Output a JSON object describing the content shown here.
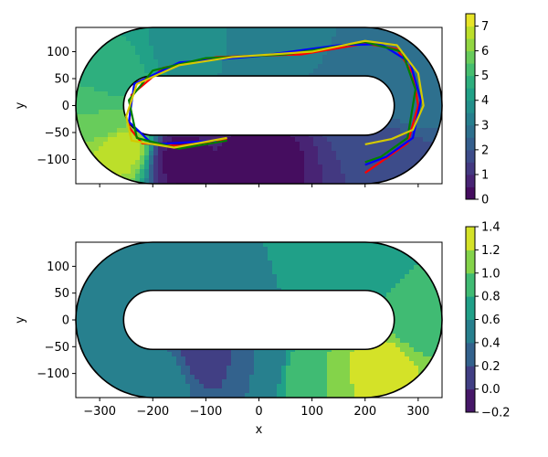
{
  "chart_data": [
    {
      "type": "heatmap",
      "xlabel": "",
      "ylabel": "y",
      "xlim": [
        -345,
        345
      ],
      "ylim": [
        -145,
        145
      ],
      "x_ticks": [
        -300,
        -200,
        -100,
        0,
        100,
        200,
        300
      ],
      "x_tick_labels_visible": false,
      "y_ticks": [
        100,
        50,
        0,
        -50,
        -100
      ],
      "colorbar": {
        "ticks": [
          0,
          1,
          2,
          3,
          4,
          5,
          6,
          7
        ],
        "levels": [
          0,
          0.5,
          1,
          1.5,
          2,
          2.5,
          3,
          3.5,
          4,
          4.5,
          5,
          5.5,
          6,
          6.5,
          7,
          7.5
        ],
        "range": [
          0,
          7.5
        ]
      },
      "track": {
        "straight_half_length": 200,
        "outer_radius": 145,
        "inner_radius": 55
      },
      "field_samples": [
        {
          "x": -260,
          "y": -80,
          "value": 6.8
        },
        {
          "x": -290,
          "y": -20,
          "value": 5.5
        },
        {
          "x": -270,
          "y": 60,
          "value": 4.6
        },
        {
          "x": -150,
          "y": 110,
          "value": 3.9
        },
        {
          "x": 0,
          "y": 110,
          "value": 3.4
        },
        {
          "x": 150,
          "y": 105,
          "value": 3.0
        },
        {
          "x": 290,
          "y": 20,
          "value": 2.7
        },
        {
          "x": 250,
          "y": -110,
          "value": 1.5
        },
        {
          "x": 0,
          "y": -100,
          "value": 0.2
        },
        {
          "x": -150,
          "y": -100,
          "value": 0.3
        }
      ],
      "lines": [
        {
          "color": "#ff0000",
          "x": [
            -60,
            -150,
            -220,
            -245,
            -240,
            -180,
            -80,
            80,
            200,
            260,
            290,
            300,
            280,
            200
          ],
          "y": [
            -62,
            -75,
            -70,
            -40,
            20,
            70,
            90,
            95,
            115,
            105,
            60,
            0,
            -70,
            -125
          ]
        },
        {
          "color": "#0000ff",
          "x": [
            -80,
            -200,
            -245,
            -235,
            -150,
            0,
            150,
            230,
            285,
            305,
            290,
            240,
            200
          ],
          "y": [
            -65,
            -72,
            -30,
            40,
            80,
            92,
            112,
            114,
            80,
            10,
            -60,
            -95,
            -110
          ]
        },
        {
          "color": "#008000",
          "x": [
            -60,
            -150,
            -230,
            -245,
            -200,
            -100,
            50,
            200,
            270,
            295,
            280,
            230,
            200
          ],
          "y": [
            -65,
            -80,
            -60,
            10,
            65,
            88,
            95,
            118,
            100,
            30,
            -60,
            -95,
            -105
          ]
        },
        {
          "color": "#d4c800",
          "x": [
            -60,
            -160,
            -240,
            -250,
            -230,
            -150,
            -50,
            100,
            200,
            260,
            300,
            310,
            290,
            250,
            200
          ],
          "y": [
            -60,
            -78,
            -65,
            -20,
            40,
            75,
            90,
            100,
            120,
            112,
            60,
            0,
            -45,
            -62,
            -72
          ]
        }
      ]
    },
    {
      "type": "heatmap",
      "xlabel": "x",
      "ylabel": "y",
      "xlim": [
        -345,
        345
      ],
      "ylim": [
        -145,
        145
      ],
      "x_ticks": [
        -300,
        -200,
        -100,
        0,
        100,
        200,
        300
      ],
      "y_ticks": [
        100,
        50,
        0,
        -50,
        -100
      ],
      "colorbar": {
        "ticks": [
          -0.2,
          0.0,
          0.2,
          0.4,
          0.6,
          0.8,
          1.0,
          1.2,
          1.4
        ],
        "levels": [
          -0.2,
          0.0,
          0.2,
          0.4,
          0.6,
          0.8,
          1.0,
          1.2,
          1.4
        ],
        "range": [
          -0.2,
          1.4
        ]
      },
      "track": {
        "straight_half_length": 200,
        "outer_radius": 145,
        "inner_radius": 55
      },
      "field_samples": [
        {
          "x": -280,
          "y": 0,
          "value": 0.5
        },
        {
          "x": -200,
          "y": 100,
          "value": 0.6
        },
        {
          "x": 0,
          "y": 110,
          "value": 0.6
        },
        {
          "x": 200,
          "y": 100,
          "value": 0.7
        },
        {
          "x": 300,
          "y": 0,
          "value": 0.9
        },
        {
          "x": 230,
          "y": -90,
          "value": 1.3
        },
        {
          "x": 100,
          "y": -100,
          "value": 1.0
        },
        {
          "x": -100,
          "y": -70,
          "value": 0.1
        },
        {
          "x": -180,
          "y": -110,
          "value": 0.5
        },
        {
          "x": 0,
          "y": -80,
          "value": 0.4
        }
      ]
    }
  ],
  "palette": {
    "viridis": [
      "#440154",
      "#482878",
      "#3e4989",
      "#31688e",
      "#26828e",
      "#1f9e89",
      "#35b779",
      "#6ece58",
      "#b5de2b",
      "#fde725"
    ]
  }
}
